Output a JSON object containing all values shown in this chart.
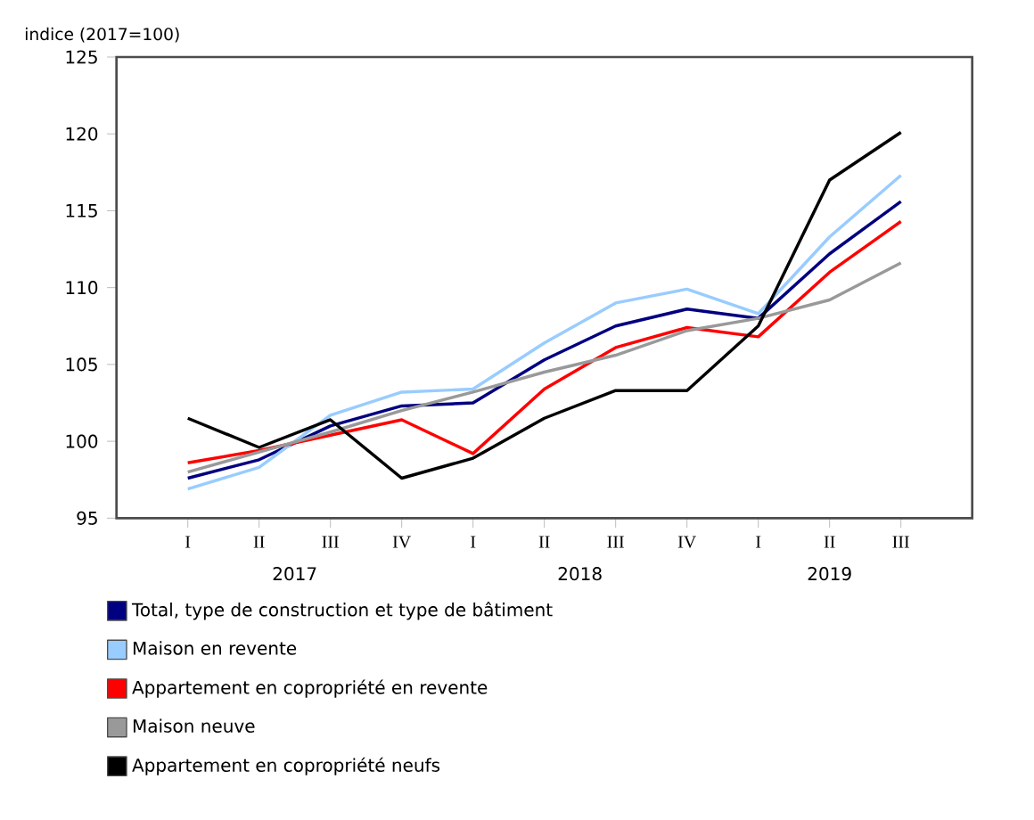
{
  "chart_data": {
    "type": "line",
    "ylabel": "indice (2017=100)",
    "categories": [
      "I",
      "II",
      "III",
      "IV",
      "I",
      "II",
      "III",
      "IV",
      "I",
      "II",
      "III"
    ],
    "annotations": [
      "2017",
      "2018",
      "2019"
    ],
    "ylim": [
      95,
      125
    ],
    "yticks": [
      95,
      100,
      105,
      110,
      115,
      120,
      125
    ],
    "grid": false,
    "legend": "bottom",
    "series": [
      {
        "name": "Total, type de construction et type de bâtiment",
        "color": "#000080",
        "values": [
          97.6,
          98.8,
          101.0,
          102.3,
          102.5,
          105.3,
          107.5,
          108.6,
          108.0,
          112.2,
          115.6
        ]
      },
      {
        "name": "Maison en revente",
        "color": "#99ccff",
        "values": [
          96.9,
          98.3,
          101.7,
          103.2,
          103.4,
          106.4,
          109.0,
          109.9,
          108.3,
          113.3,
          117.3
        ]
      },
      {
        "name": "Appartement en copropriété en revente",
        "color": "#ff0000",
        "values": [
          98.6,
          99.4,
          100.4,
          101.4,
          99.2,
          103.4,
          106.1,
          107.4,
          106.8,
          111.0,
          114.3
        ]
      },
      {
        "name": "Maison neuve",
        "color": "#999999",
        "values": [
          98.0,
          99.3,
          100.6,
          102.0,
          103.2,
          104.5,
          105.6,
          107.2,
          108.0,
          109.2,
          111.6
        ]
      },
      {
        "name": "Appartement en copropriété neufs",
        "color": "#000000",
        "values": [
          101.5,
          99.6,
          101.4,
          97.6,
          98.9,
          101.5,
          103.3,
          103.3,
          107.5,
          117.0,
          120.1
        ]
      }
    ]
  }
}
